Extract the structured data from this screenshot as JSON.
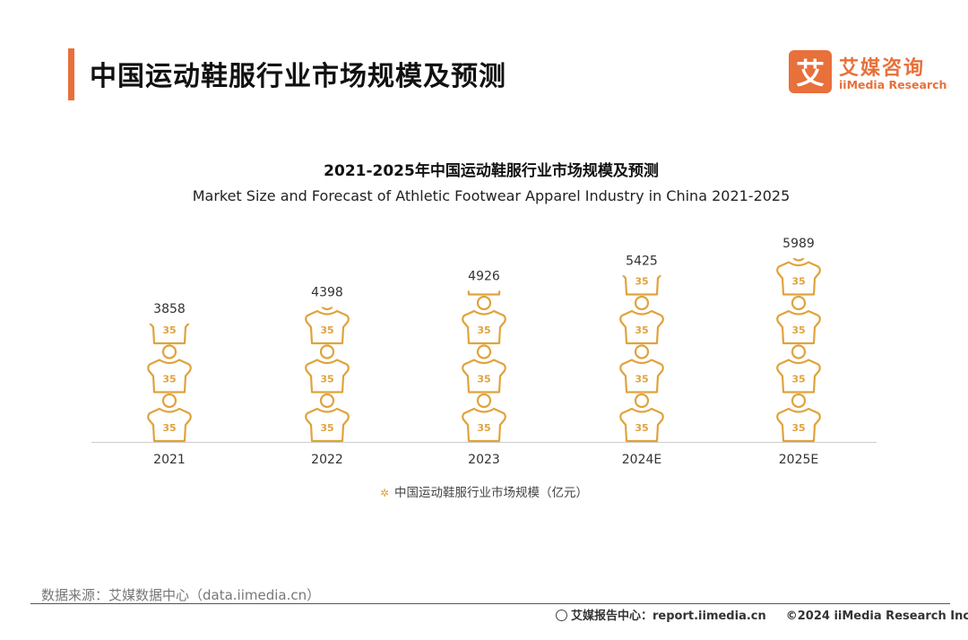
{
  "header": {
    "title": "中国运动鞋服行业市场规模及预测"
  },
  "logo": {
    "mark": "艾",
    "name_cn": "艾媒咨询",
    "name_en": "iiMedia Research"
  },
  "colors": {
    "accent": "#e8703a",
    "icon": "#e0a33c",
    "baseline": "#cccccc"
  },
  "chart_data": {
    "type": "bar",
    "title": "2021-2025年中国运动鞋服行业市场规模及预测",
    "subtitle": "Market Size and Forecast of Athletic Footwear Apparel Industry in China 2021-2025",
    "categories": [
      "2021",
      "2022",
      "2023",
      "2024E",
      "2025E"
    ],
    "series": [
      {
        "name": "中国运动鞋服行业市场规模（亿元）",
        "values": [
          3858,
          4398,
          4926,
          5425,
          5989
        ]
      }
    ],
    "bar_icon": "jersey-icon",
    "icon_label": "35",
    "ylim": [
      0,
      5989
    ],
    "grid": false,
    "legend": "bottom-center"
  },
  "source": {
    "text": "数据来源：艾媒数据中心（data.iimedia.cn）"
  },
  "footer": {
    "report_center": "艾媒报告中心：report.iimedia.cn",
    "copyright": "©2024  iiMedia Research  Inc"
  }
}
